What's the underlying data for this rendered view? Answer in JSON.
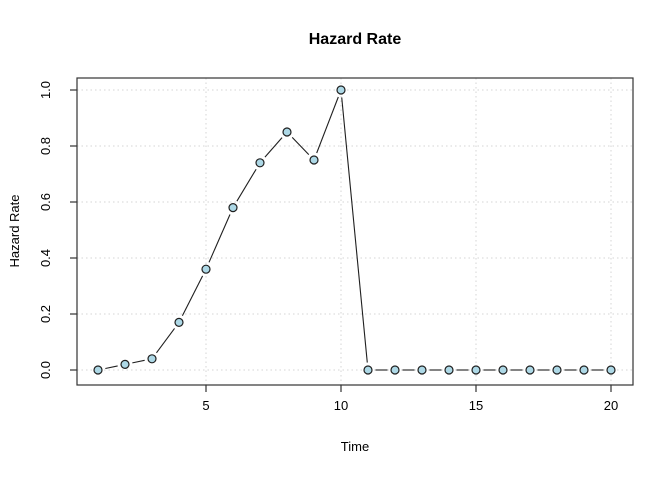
{
  "chart_data": {
    "type": "line",
    "subtype": "points-connected-with-gaps (R plot type='b')",
    "title": "Hazard Rate",
    "xlabel": "Time",
    "ylabel": "Hazard Rate",
    "x": [
      1,
      2,
      3,
      4,
      5,
      6,
      7,
      8,
      9,
      10,
      11,
      12,
      13,
      14,
      15,
      16,
      17,
      18,
      19,
      20
    ],
    "y": [
      0.0,
      0.02,
      0.04,
      0.17,
      0.36,
      0.58,
      0.74,
      0.85,
      0.75,
      1.0,
      0.0,
      0.0,
      0.0,
      0.0,
      0.0,
      0.0,
      0.0,
      0.0,
      0.0,
      0.0
    ],
    "xlim": [
      1,
      20
    ],
    "ylim": [
      0.0,
      1.0
    ],
    "xticks": [
      "5",
      "10",
      "15",
      "20"
    ],
    "yticks": [
      "0.0",
      "0.2",
      "0.4",
      "0.6",
      "0.8",
      "1.0"
    ],
    "grid": true,
    "legend": "none",
    "colors": {
      "marker_fill": "#ADD8E6",
      "marker_stroke": "#1f1f1f",
      "line": "#1f1f1f",
      "grid": "#d4d4d4",
      "axis": "#333333",
      "text": "#000000",
      "background": "#ffffff"
    }
  }
}
